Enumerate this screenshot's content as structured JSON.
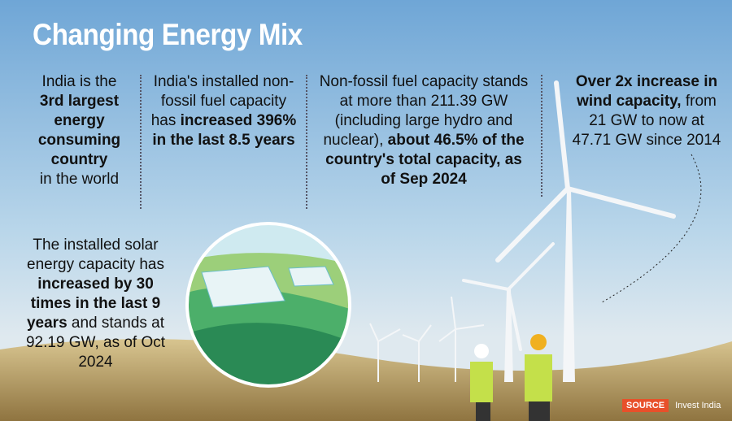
{
  "title": "Changing Energy Mix",
  "facts": [
    {
      "pre": "India is the",
      "bold": "3rd largest energy consuming country",
      "post": "in the world"
    },
    {
      "pre": "India's installed non-fossil fuel capacity has",
      "bold": "increased 396% in the last 8.5 years",
      "post": ""
    },
    {
      "pre": "Non-fossil fuel capacity stands at more than 211.39 GW (including large hydro and nuclear),",
      "bold": "about 46.5% of the country's total capacity, as of Sep 2024",
      "post": ""
    },
    {
      "pre": "",
      "bold": "Over 2x increase in wind capacity,",
      "post": "from 21 GW to now at 47.71 GW since 2014"
    },
    {
      "pre": "The installed solar energy capacity has",
      "bold": "increased by 30 times in the last 9 years",
      "post": "and stands at 92.19 GW, as of Oct 2024"
    }
  ],
  "source": {
    "label": "SOURCE",
    "value": "Invest India"
  },
  "colors": {
    "sky_top": "#6fa9d8",
    "sky_bottom": "#cfe3ef",
    "grass": "#b99c5e",
    "source_badge": "#e8502a"
  }
}
